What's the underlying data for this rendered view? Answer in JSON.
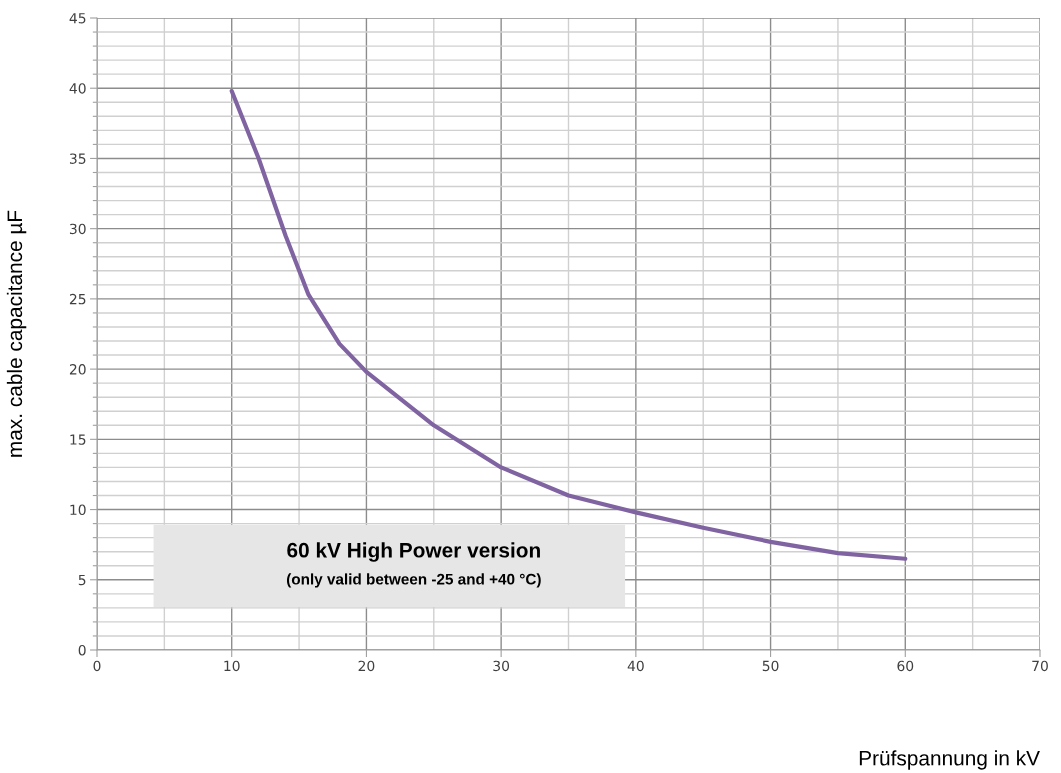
{
  "chart_data": {
    "type": "line",
    "xlabel": "Prüfspannung in kV",
    "ylabel": "max. cable capacitance µF",
    "series": [
      {
        "color": "#8064a2",
        "x": [
          10,
          12,
          14,
          15.7,
          18,
          20,
          25,
          30,
          35,
          40,
          45,
          50,
          55,
          60
        ],
        "values": [
          39.8,
          35,
          29.5,
          25.3,
          21.8,
          19.8,
          16,
          13,
          11,
          9.8,
          8.7,
          7.7,
          6.9,
          6.5
        ]
      }
    ],
    "xlim": [
      0,
      70
    ],
    "ylim": [
      0,
      45
    ],
    "xticks": [
      0,
      {
        "value": 5,
        "label": null
      },
      10,
      {
        "value": 15,
        "label": null
      },
      20,
      {
        "value": 25,
        "label": null
      },
      30,
      {
        "value": 35,
        "label": null
      },
      40,
      {
        "value": 45,
        "label": null
      },
      50,
      {
        "value": 55,
        "label": null
      },
      60,
      {
        "value": 65,
        "label": null
      },
      70
    ],
    "yticks": [
      0,
      {
        "value": 1,
        "label": null
      },
      {
        "value": 2,
        "label": null
      },
      {
        "value": 3,
        "label": null
      },
      {
        "value": 4,
        "label": null
      },
      5,
      {
        "value": 6,
        "label": null
      },
      {
        "value": 7,
        "label": null
      },
      {
        "value": 8,
        "label": null
      },
      {
        "value": 9,
        "label": null
      },
      10,
      {
        "value": 11,
        "label": null
      },
      {
        "value": 12,
        "label": null
      },
      {
        "value": 13,
        "label": null
      },
      {
        "value": 14,
        "label": null
      },
      15,
      {
        "value": 16,
        "label": null
      },
      {
        "value": 17,
        "label": null
      },
      {
        "value": 18,
        "label": null
      },
      {
        "value": 19,
        "label": null
      },
      20,
      {
        "value": 21,
        "label": null
      },
      {
        "value": 22,
        "label": null
      },
      {
        "value": 23,
        "label": null
      },
      {
        "value": 24,
        "label": null
      },
      25,
      {
        "value": 26,
        "label": null
      },
      {
        "value": 27,
        "label": null
      },
      {
        "value": 28,
        "label": null
      },
      {
        "value": 29,
        "label": null
      },
      30,
      {
        "value": 31,
        "label": null
      },
      {
        "value": 32,
        "label": null
      },
      {
        "value": 33,
        "label": null
      },
      {
        "value": 34,
        "label": null
      },
      35,
      {
        "value": 36,
        "label": null
      },
      {
        "value": 37,
        "label": null
      },
      {
        "value": 38,
        "label": null
      },
      {
        "value": 39,
        "label": null
      },
      40,
      {
        "value": 41,
        "label": null
      },
      {
        "value": 42,
        "label": null
      },
      {
        "value": 43,
        "label": null
      },
      {
        "value": 44,
        "label": null
      },
      45
    ],
    "grid": true,
    "marker": "none",
    "line_style": "solid",
    "annotations": [
      "60 kV High Power version",
      "(only valid between -25 and +40 °C)"
    ]
  }
}
